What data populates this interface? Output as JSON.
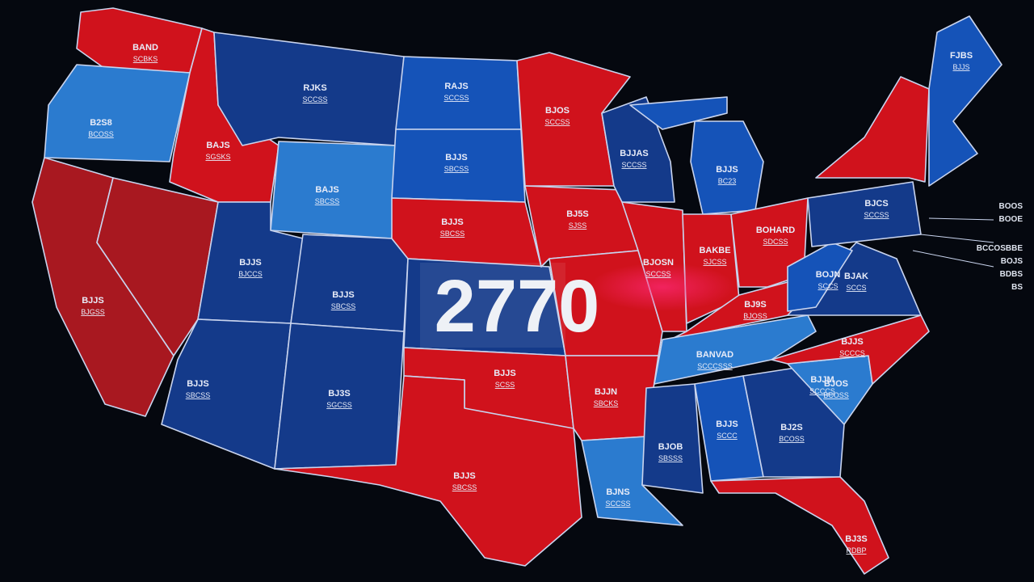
{
  "headline": "2770",
  "states": [
    {
      "label": "BAND",
      "sublabel": "SCBKS"
    },
    {
      "label": "B2S8",
      "sublabel": "BCOSS"
    },
    {
      "label": "BAJS",
      "sublabel": "SGSKS"
    },
    {
      "label": "RJKS",
      "sublabel": "SCCSS"
    },
    {
      "label": "RAJS",
      "sublabel": "SCCSS"
    },
    {
      "label": "BJOS",
      "sublabel": "SCCSS"
    },
    {
      "label": "BJJS",
      "sublabel": "SBCSS"
    },
    {
      "label": "BAJS",
      "sublabel": "SBCSS"
    },
    {
      "label": "BJJS",
      "sublabel": "SBCSS"
    },
    {
      "label": "BJ5S",
      "sublabel": "SJSS"
    },
    {
      "label": "BJJS",
      "sublabel": "BJGSS"
    },
    {
      "label": "BJJS",
      "sublabel": "BJCCS"
    },
    {
      "label": "BJJS",
      "sublabel": "SBCSS"
    },
    {
      "label": "BJJS",
      "sublabel": "SBCSS"
    },
    {
      "label": "BJ3S",
      "sublabel": "SGCSS"
    },
    {
      "label": "BJJS",
      "sublabel": "SCSS"
    },
    {
      "label": "BJJS",
      "sublabel": "SBCSS"
    },
    {
      "label": "BJJN",
      "sublabel": "SBCKS"
    },
    {
      "label": "BJNS",
      "sublabel": "SCCSS"
    },
    {
      "label": "BJJAS",
      "sublabel": "SCCSS"
    },
    {
      "label": "BJJS",
      "sublabel": "BC23"
    },
    {
      "label": "BJOSN",
      "sublabel": "SCCSS"
    },
    {
      "label": "BAKBE",
      "sublabel": "SJCSS"
    },
    {
      "label": "BOHARD",
      "sublabel": "SDCSS"
    },
    {
      "label": "BJ9S",
      "sublabel": "BJOSS"
    },
    {
      "label": "BANVAD",
      "sublabel": "SCCCSSS"
    },
    {
      "label": "BOJN",
      "sublabel": "SCCS"
    },
    {
      "label": "BJAK",
      "sublabel": "SCCS"
    },
    {
      "label": "BJJM",
      "sublabel": "SCCCS"
    },
    {
      "label": "BJOS",
      "sublabel": "BCOSS"
    },
    {
      "label": "BJOB",
      "sublabel": "SBSSS"
    },
    {
      "label": "BJJS",
      "sublabel": "SCCC"
    },
    {
      "label": "BJ2S",
      "sublabel": "BCOSS"
    },
    {
      "label": "BJJS",
      "sublabel": "SCCCS"
    },
    {
      "label": "BJCS",
      "sublabel": "SCCSS"
    },
    {
      "label": "BJ3S",
      "sublabel": "RDBP"
    },
    {
      "label": "FJBS",
      "sublabel": "BJJS"
    }
  ],
  "side_labels": [
    "BOOS",
    "BOOE",
    "BCCOSBBE",
    "BOJS",
    "BDBS",
    "BS"
  ]
}
